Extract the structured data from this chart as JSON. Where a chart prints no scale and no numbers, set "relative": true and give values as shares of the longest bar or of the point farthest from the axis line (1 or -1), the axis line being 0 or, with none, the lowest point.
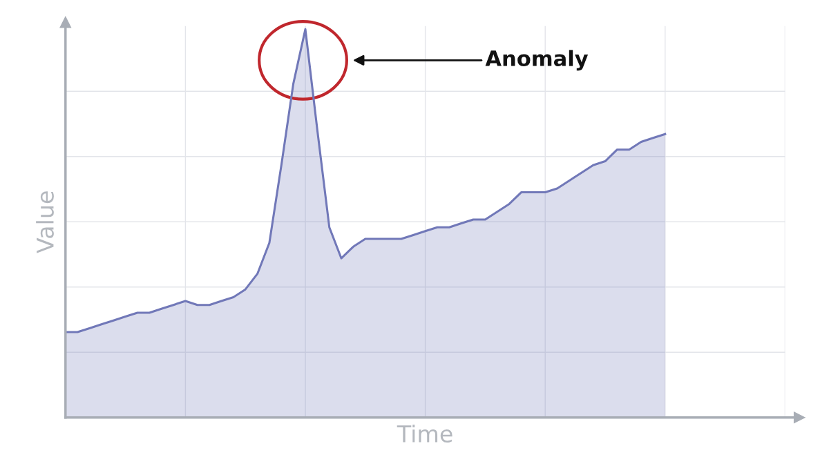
{
  "chart_data": {
    "type": "area",
    "xlabel": "Time",
    "ylabel": "Value",
    "relative": true,
    "grid": true,
    "categories": [
      null,
      null,
      null,
      null,
      null,
      null,
      null,
      null,
      null,
      null,
      null,
      null,
      null,
      null,
      null,
      null,
      null,
      null,
      null,
      null,
      null,
      null,
      null,
      null,
      null,
      null,
      null,
      null,
      null,
      null,
      null,
      null,
      null,
      null,
      null,
      null,
      null,
      null,
      null,
      null,
      null,
      null,
      null,
      null,
      null,
      null,
      null,
      null,
      null,
      null,
      null,
      null,
      null,
      null,
      null,
      null,
      null,
      null,
      null,
      null,
      null
    ],
    "series": [
      {
        "color": "#7178b8",
        "values": [
          0.22,
          0.22,
          0.23,
          0.24,
          0.25,
          0.26,
          0.27,
          0.27,
          0.28,
          0.29,
          0.3,
          0.29,
          0.29,
          0.3,
          0.31,
          0.33,
          0.37,
          0.45,
          0.65,
          0.86,
          1.0,
          0.74,
          0.49,
          0.41,
          0.44,
          0.46,
          0.46,
          0.46,
          0.46,
          0.47,
          0.48,
          0.49,
          0.49,
          0.5,
          0.51,
          0.51,
          0.53,
          0.55,
          0.58,
          0.58,
          0.58,
          0.59,
          0.61,
          0.63,
          0.65,
          0.66,
          0.69,
          0.69,
          0.71,
          0.72,
          0.73,
          null,
          null,
          null,
          null,
          null,
          null,
          null,
          null,
          null,
          null
        ]
      }
    ],
    "annotations": [
      "Anomaly"
    ]
  }
}
